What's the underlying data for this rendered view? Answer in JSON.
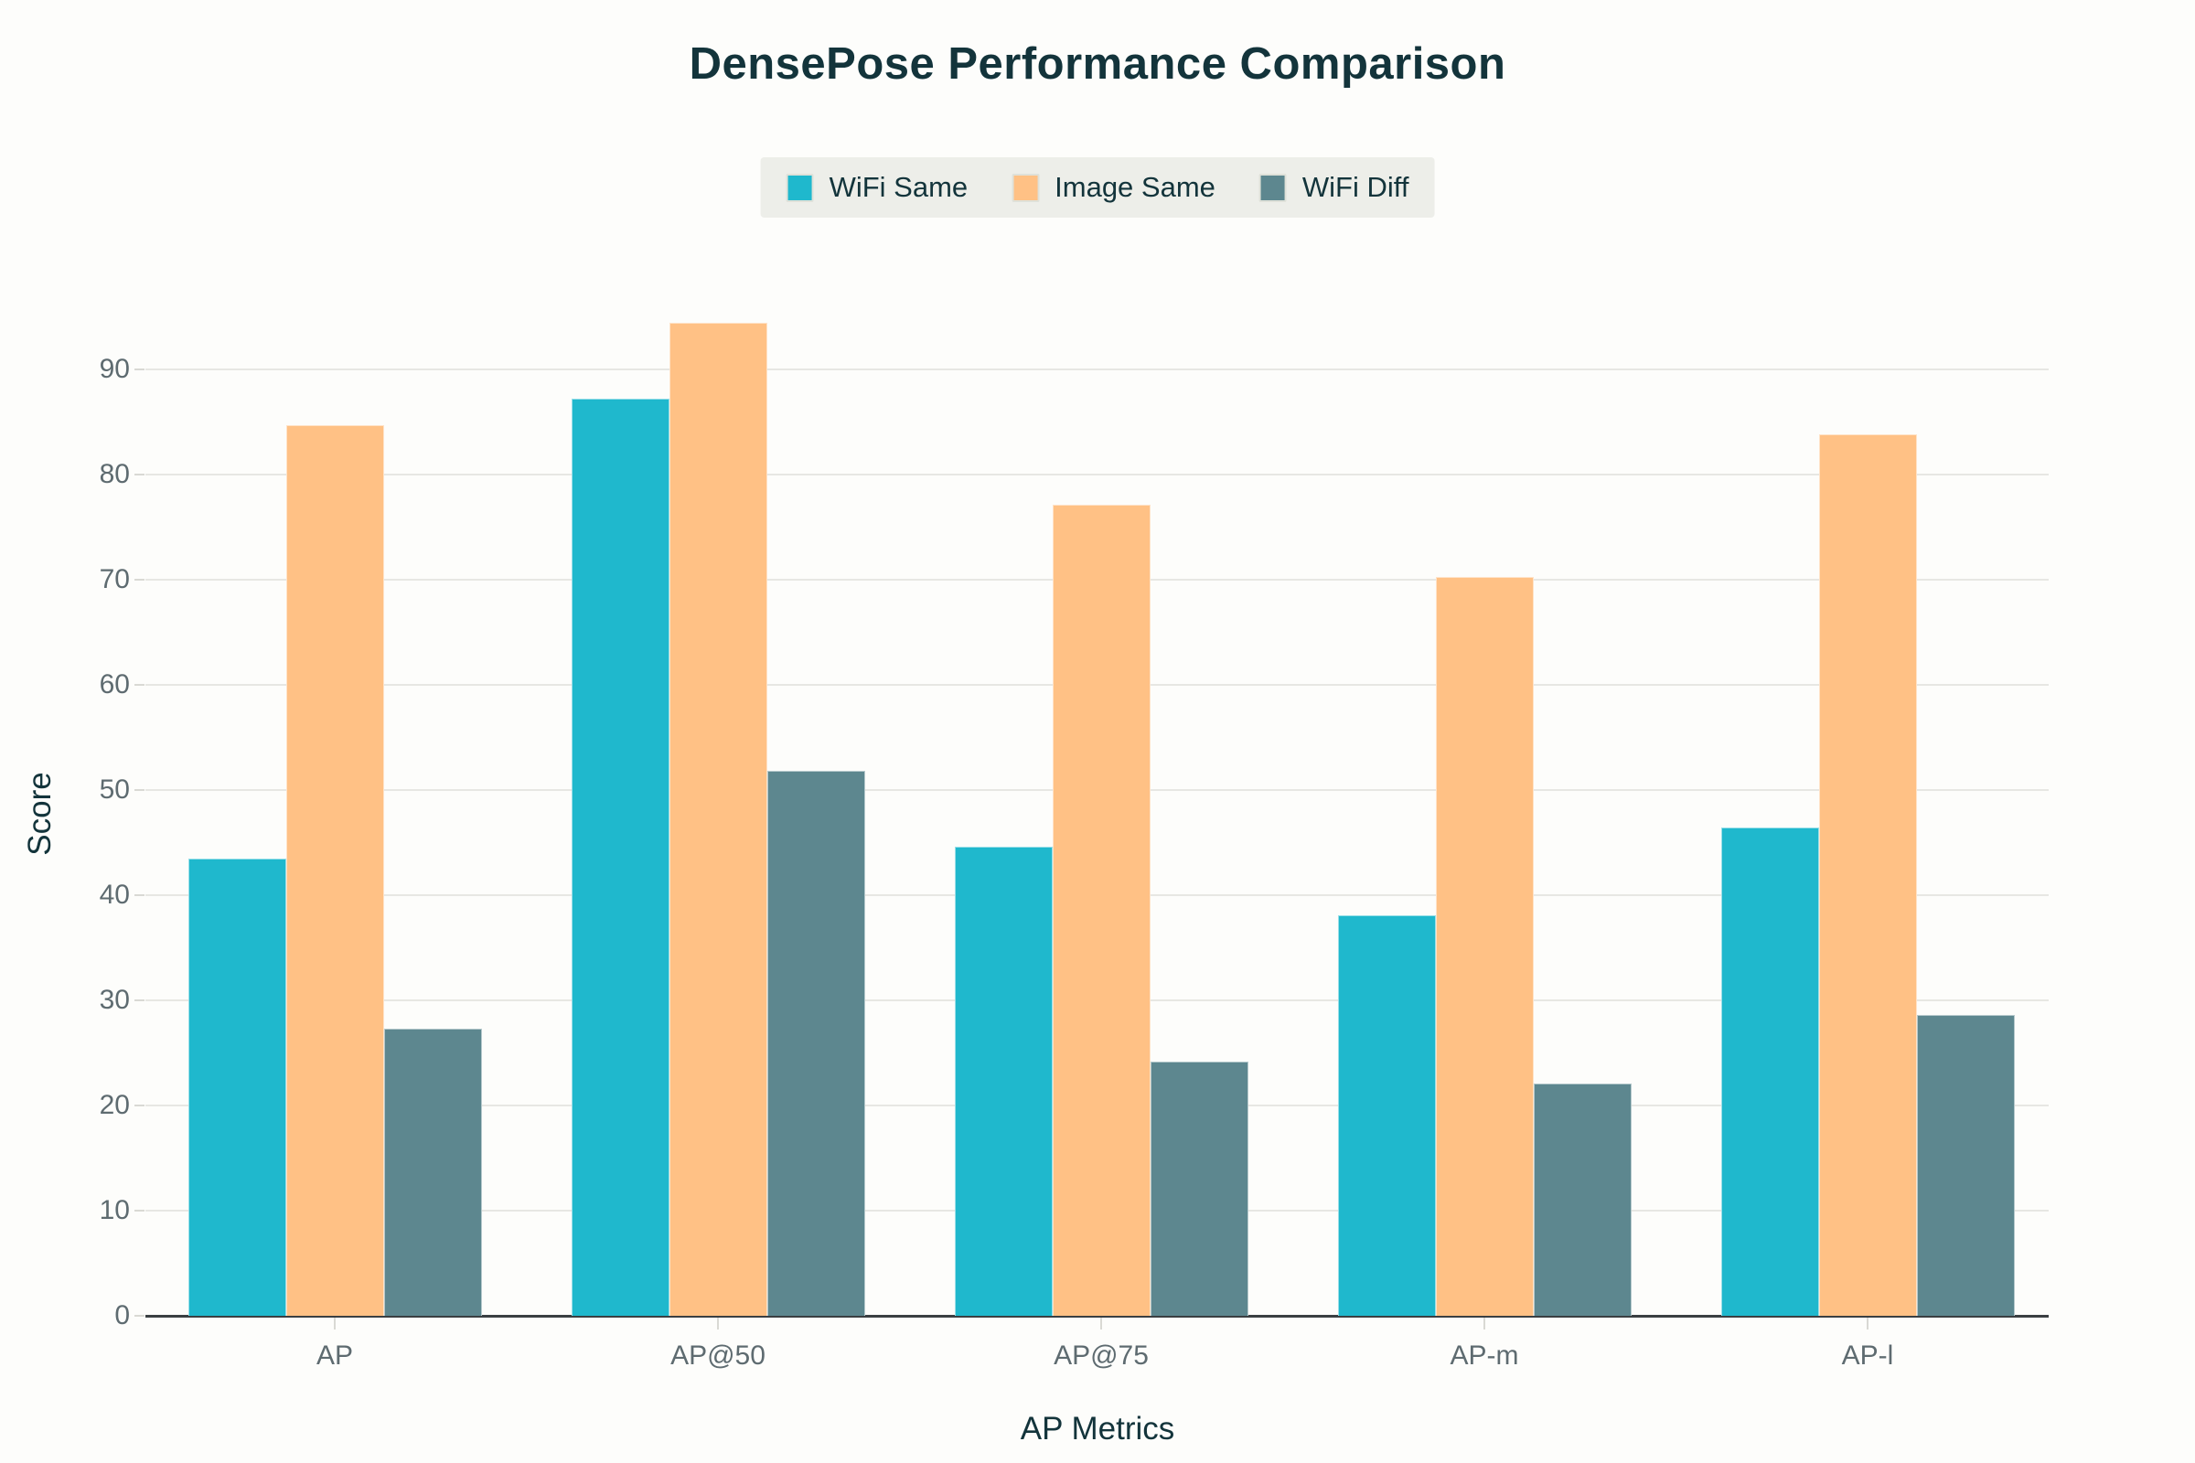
{
  "chart_data": {
    "type": "bar",
    "title": "DensePose Performance Comparison",
    "xlabel": "AP Metrics",
    "ylabel": "Score",
    "categories": [
      "AP",
      "AP@50",
      "AP@75",
      "AP-m",
      "AP-l"
    ],
    "series": [
      {
        "name": "WiFi Same",
        "color": "#1FB8CD",
        "values": [
          43.5,
          87.2,
          44.6,
          38.1,
          46.4
        ]
      },
      {
        "name": "Image Same",
        "color": "#FFC185",
        "values": [
          84.7,
          94.4,
          77.1,
          70.3,
          83.8
        ]
      },
      {
        "name": "WiFi Diff",
        "color": "#5D878F",
        "values": [
          27.3,
          51.8,
          24.2,
          22.1,
          28.6
        ]
      }
    ],
    "ylim": [
      0,
      95
    ],
    "yticks": [
      0,
      10,
      20,
      30,
      40,
      50,
      60,
      70,
      80,
      90
    ],
    "grid": true,
    "legend_position": "top-center"
  },
  "colors": {
    "background": "#FDFDFB",
    "title_text": "#13343B",
    "axis_title_text": "#13343B",
    "tick_text": "#5E6B70",
    "gridline": "#E7E7E3",
    "axis_line": "#3A3F42",
    "tick_mark": "#D9D9D4",
    "legend_background": "#EDEEE9",
    "legend_text": "#13343B"
  }
}
